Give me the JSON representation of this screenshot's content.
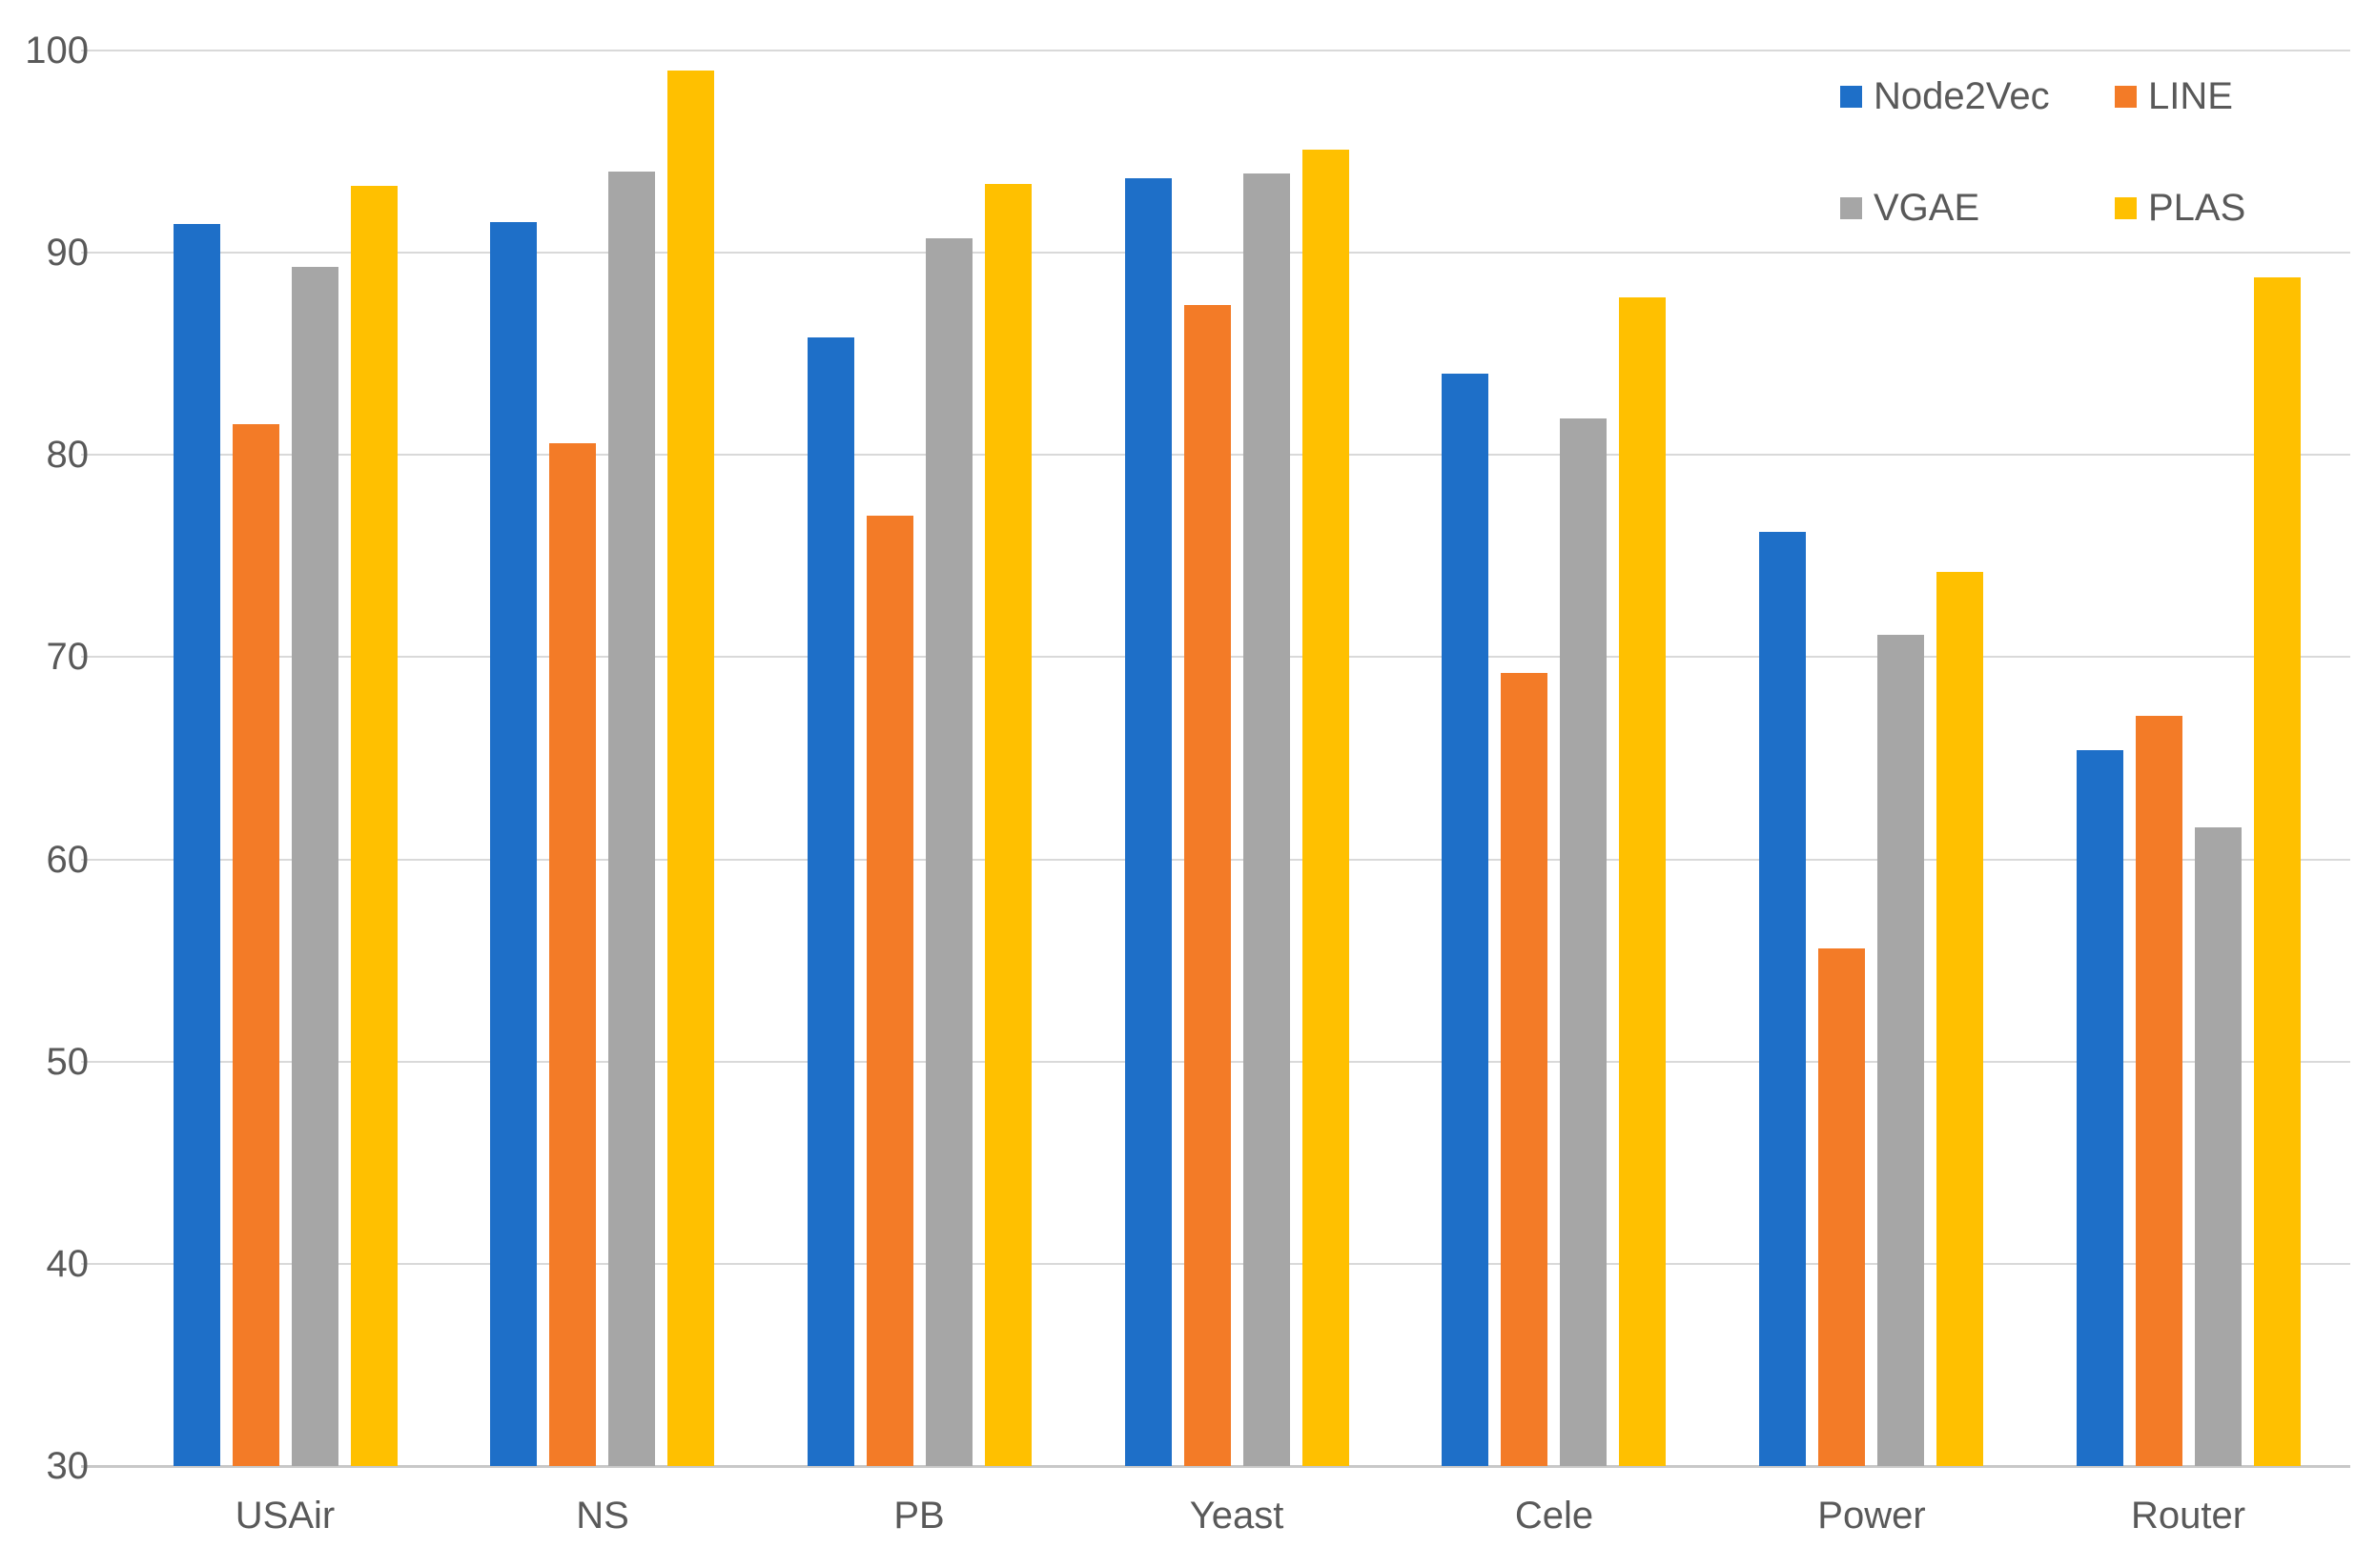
{
  "chart_data": {
    "type": "bar",
    "title": "",
    "xlabel": "",
    "ylabel": "",
    "categories": [
      "USAir",
      "NS",
      "PB",
      "Yeast",
      "Cele",
      "Power",
      "Router"
    ],
    "series": [
      {
        "name": "Node2Vec",
        "color": "#1E6FC8",
        "values": [
          91.4,
          91.5,
          85.8,
          93.7,
          84.0,
          76.2,
          65.4
        ]
      },
      {
        "name": "LINE",
        "color": "#F37B27",
        "values": [
          81.5,
          80.6,
          77.0,
          87.4,
          69.2,
          55.6,
          67.1
        ]
      },
      {
        "name": "VGAE",
        "color": "#A6A6A6",
        "values": [
          89.3,
          94.0,
          90.7,
          93.9,
          81.8,
          71.1,
          61.6
        ]
      },
      {
        "name": "PLAS",
        "color": "#FFC000",
        "values": [
          93.3,
          99.0,
          93.4,
          95.1,
          87.8,
          74.2,
          88.8
        ]
      }
    ],
    "ylim": [
      30,
      100
    ],
    "yticks": [
      100,
      90,
      80,
      70,
      60,
      50,
      40,
      30
    ],
    "grid": "horizontal-only",
    "legend_position": "top-right",
    "legend_rows": 2,
    "legend_columns": 2
  },
  "colors": {
    "background": "#FFFFFF",
    "gridline": "#D9D9D9",
    "axis_line": "#C8C8C8",
    "tick_text": "#595959",
    "legend_text": "#595959"
  }
}
